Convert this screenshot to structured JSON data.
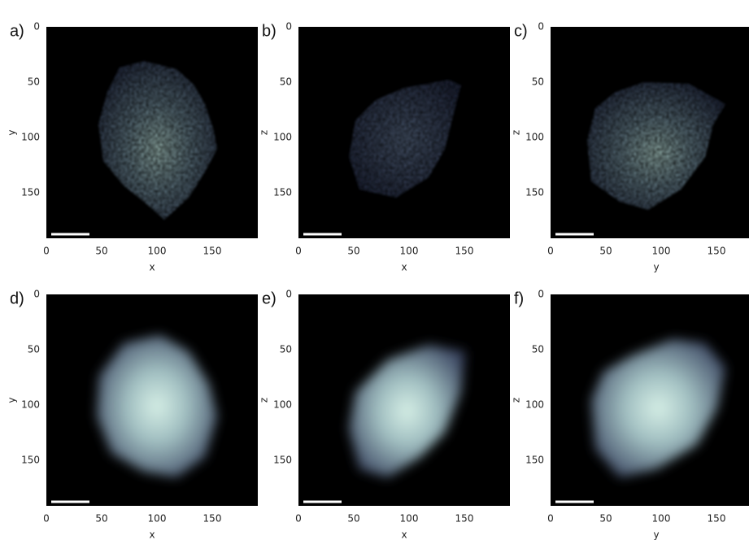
{
  "panels": [
    {
      "label": "a)",
      "xlabel": "x",
      "ylabel": "y",
      "xticks": [
        0,
        50,
        100,
        150
      ],
      "yticks": [
        0,
        50,
        100,
        150
      ]
    },
    {
      "label": "b)",
      "xlabel": "x",
      "ylabel": "z",
      "xticks": [
        0,
        50,
        100,
        150
      ],
      "yticks": [
        0,
        50,
        100,
        150
      ]
    },
    {
      "label": "c)",
      "xlabel": "y",
      "ylabel": "z",
      "xticks": [
        0,
        50,
        100,
        150
      ],
      "yticks": [
        0,
        50,
        100,
        150
      ]
    },
    {
      "label": "d)",
      "xlabel": "x",
      "ylabel": "y",
      "xticks": [
        0,
        50,
        100,
        150
      ],
      "yticks": [
        0,
        50,
        100,
        150
      ]
    },
    {
      "label": "e)",
      "xlabel": "x",
      "ylabel": "z",
      "xticks": [
        0,
        50,
        100,
        150
      ],
      "yticks": [
        0,
        50,
        100,
        150
      ]
    },
    {
      "label": "f)",
      "xlabel": "y",
      "ylabel": "z",
      "xticks": [
        0,
        50,
        100,
        150
      ],
      "yticks": [
        0,
        50,
        100,
        150
      ]
    }
  ]
}
